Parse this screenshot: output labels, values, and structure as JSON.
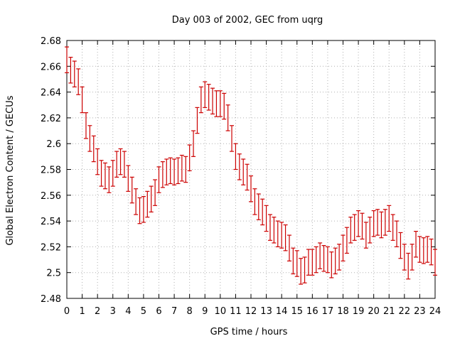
{
  "chart_data": {
    "type": "scatter",
    "title": "Day 003 of 2002, GEC from uqrg",
    "xlabel": "GPS time / hours",
    "ylabel": "Global Electron Content / GECUs",
    "xlim": [
      0,
      24
    ],
    "ylim": [
      2.48,
      2.68
    ],
    "xticks": [
      0,
      1,
      2,
      3,
      4,
      5,
      6,
      7,
      8,
      9,
      10,
      11,
      12,
      13,
      14,
      15,
      16,
      17,
      18,
      19,
      20,
      21,
      22,
      23,
      24
    ],
    "yticks": [
      2.48,
      2.5,
      2.52,
      2.54,
      2.56,
      2.58,
      2.6,
      2.62,
      2.64,
      2.66,
      2.68
    ],
    "ytick_labels": [
      "2.48",
      "2.5",
      "2.52",
      "2.54",
      "2.56",
      "2.58",
      "2.6",
      "2.62",
      "2.64",
      "2.66",
      "2.68"
    ],
    "grid": true,
    "error_bars": true,
    "series_color": "#cc0000",
    "grid_color": "#b0b0b0",
    "x": [
      0.0,
      0.25,
      0.5,
      0.75,
      1.0,
      1.25,
      1.5,
      1.75,
      2.0,
      2.25,
      2.5,
      2.75,
      3.0,
      3.25,
      3.5,
      3.75,
      4.0,
      4.25,
      4.5,
      4.75,
      5.0,
      5.25,
      5.5,
      5.75,
      6.0,
      6.25,
      6.5,
      6.75,
      7.0,
      7.25,
      7.5,
      7.75,
      8.0,
      8.25,
      8.5,
      8.75,
      9.0,
      9.25,
      9.5,
      9.75,
      10.0,
      10.25,
      10.5,
      10.75,
      11.0,
      11.25,
      11.5,
      11.75,
      12.0,
      12.25,
      12.5,
      12.75,
      13.0,
      13.25,
      13.5,
      13.75,
      14.0,
      14.25,
      14.5,
      14.75,
      15.0,
      15.25,
      15.5,
      15.75,
      16.0,
      16.25,
      16.5,
      16.75,
      17.0,
      17.25,
      17.5,
      17.75,
      18.0,
      18.25,
      18.5,
      18.75,
      19.0,
      19.25,
      19.5,
      19.75,
      20.0,
      20.25,
      20.5,
      20.75,
      21.0,
      21.25,
      21.5,
      21.75,
      22.0,
      22.25,
      22.5,
      22.75,
      23.0,
      23.25,
      23.5,
      23.75,
      24.0
    ],
    "y": [
      2.665,
      2.657,
      2.654,
      2.648,
      2.634,
      2.614,
      2.604,
      2.596,
      2.586,
      2.577,
      2.575,
      2.572,
      2.577,
      2.584,
      2.586,
      2.584,
      2.573,
      2.564,
      2.555,
      2.548,
      2.549,
      2.553,
      2.557,
      2.562,
      2.572,
      2.576,
      2.578,
      2.579,
      2.578,
      2.579,
      2.581,
      2.58,
      2.589,
      2.6,
      2.618,
      2.634,
      2.638,
      2.636,
      2.633,
      2.631,
      2.631,
      2.629,
      2.62,
      2.604,
      2.59,
      2.582,
      2.578,
      2.574,
      2.565,
      2.555,
      2.551,
      2.547,
      2.542,
      2.535,
      2.533,
      2.53,
      2.529,
      2.527,
      2.519,
      2.509,
      2.507,
      2.501,
      2.502,
      2.508,
      2.508,
      2.51,
      2.513,
      2.511,
      2.51,
      2.506,
      2.509,
      2.512,
      2.519,
      2.525,
      2.533,
      2.535,
      2.538,
      2.536,
      2.529,
      2.533,
      2.538,
      2.539,
      2.537,
      2.539,
      2.542,
      2.535,
      2.53,
      2.521,
      2.512,
      2.505,
      2.512,
      2.522,
      2.518,
      2.517,
      2.518,
      2.516,
      2.508
    ],
    "err": 0.01
  }
}
